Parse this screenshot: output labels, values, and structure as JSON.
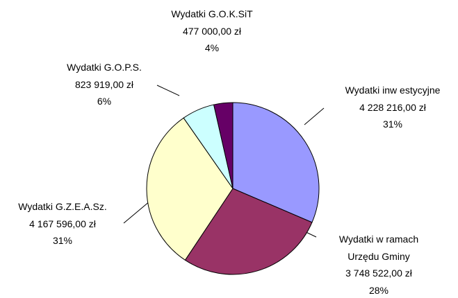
{
  "chart_data": {
    "type": "pie",
    "categories": [
      "Wydatki inw estycyjne",
      "Wydatki w  ramach\nUrzędu Gminy",
      "Wydatki G.Z.E.A.Sz.",
      "Wydatki G.O.P.S.",
      "Wydatki G.O.K.SiT"
    ],
    "values": [
      4228216,
      3748522,
      4167596,
      823919,
      477000
    ],
    "value_labels": [
      "4 228 216,00 zł",
      "3 748 522,00 zł",
      "4 167 596,00 zł",
      "823 919,00 zł",
      "477 000,00 zł"
    ],
    "percent_labels": [
      "31%",
      "28%",
      "31%",
      "6%",
      "4%"
    ],
    "colors": [
      "#9999ff",
      "#993366",
      "#ffffcc",
      "#ccffff",
      "#660066"
    ]
  }
}
